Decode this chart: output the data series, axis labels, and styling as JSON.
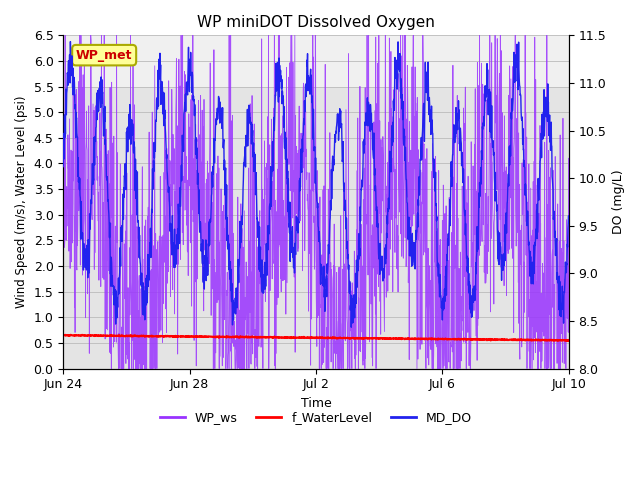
{
  "title": "WP miniDOT Dissolved Oxygen",
  "ylabel_left": "Wind Speed (m/s), Water Level (psi)",
  "ylabel_right": "DO (mg/L)",
  "xlabel": "Time",
  "ylim_left": [
    0.0,
    6.5
  ],
  "ylim_right": [
    8.0,
    11.5
  ],
  "yticks_left": [
    0.0,
    0.5,
    1.0,
    1.5,
    2.0,
    2.5,
    3.0,
    3.5,
    4.0,
    4.5,
    5.0,
    5.5,
    6.0,
    6.5
  ],
  "yticks_right": [
    8.0,
    8.5,
    9.0,
    9.5,
    10.0,
    10.5,
    11.0,
    11.5
  ],
  "xtick_labels": [
    "Jun 24",
    "Jun 28",
    "Jul 2",
    "Jul 6",
    "Jul 10"
  ],
  "xtick_positions": [
    0,
    4,
    8,
    12,
    16
  ],
  "n_days": 17,
  "wp_ws_color": "#9933FF",
  "water_level_color": "#FF0000",
  "md_do_color": "#2222EE",
  "annotation_box_facecolor": "#FFFF99",
  "annotation_box_edgecolor": "#AAAA00",
  "annotation_text_color": "#CC0000",
  "band_upper_color": "#F0F0F0",
  "band_lower_color": "#E4E4E4",
  "band_split": 5.5,
  "wp_ws_lw": 0.6,
  "water_level_lw": 1.5,
  "md_do_lw": 1.0
}
